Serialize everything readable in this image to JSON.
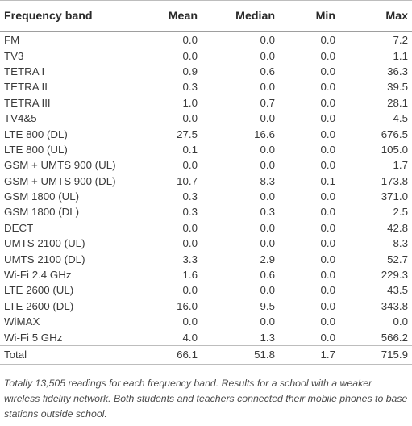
{
  "table": {
    "headers": [
      "Frequency band",
      "Mean",
      "Median",
      "Min",
      "Max"
    ],
    "rows": [
      [
        "FM",
        "0.0",
        "0.0",
        "0.0",
        "7.2"
      ],
      [
        "TV3",
        "0.0",
        "0.0",
        "0.0",
        "1.1"
      ],
      [
        "TETRA I",
        "0.9",
        "0.6",
        "0.0",
        "36.3"
      ],
      [
        "TETRA II",
        "0.3",
        "0.0",
        "0.0",
        "39.5"
      ],
      [
        "TETRA III",
        "1.0",
        "0.7",
        "0.0",
        "28.1"
      ],
      [
        "TV4&5",
        "0.0",
        "0.0",
        "0.0",
        "4.5"
      ],
      [
        "LTE 800 (DL)",
        "27.5",
        "16.6",
        "0.0",
        "676.5"
      ],
      [
        "LTE 800 (UL)",
        "0.1",
        "0.0",
        "0.0",
        "105.0"
      ],
      [
        "GSM + UMTS 900 (UL)",
        "0.0",
        "0.0",
        "0.0",
        "1.7"
      ],
      [
        "GSM + UMTS 900 (DL)",
        "10.7",
        "8.3",
        "0.1",
        "173.8"
      ],
      [
        "GSM 1800 (UL)",
        "0.3",
        "0.0",
        "0.0",
        "371.0"
      ],
      [
        "GSM 1800 (DL)",
        "0.3",
        "0.3",
        "0.0",
        "2.5"
      ],
      [
        "DECT",
        "0.0",
        "0.0",
        "0.0",
        "42.8"
      ],
      [
        "UMTS 2100 (UL)",
        "0.0",
        "0.0",
        "0.0",
        "8.3"
      ],
      [
        "UMTS 2100 (DL)",
        "3.3",
        "2.9",
        "0.0",
        "52.7"
      ],
      [
        "Wi-Fi 2.4 GHz",
        "1.6",
        "0.6",
        "0.0",
        "229.3"
      ],
      [
        "LTE 2600 (UL)",
        "0.0",
        "0.0",
        "0.0",
        "43.5"
      ],
      [
        "LTE 2600 (DL)",
        "16.0",
        "9.5",
        "0.0",
        "343.8"
      ],
      [
        "WiMAX",
        "0.0",
        "0.0",
        "0.0",
        "0.0"
      ],
      [
        "Wi-Fi 5 GHz",
        "4.0",
        "1.3",
        "0.0",
        "566.2"
      ]
    ],
    "total": [
      "Total",
      "66.1",
      "51.8",
      "1.7",
      "715.9"
    ]
  },
  "footnote": "Totally 13,505 readings for each frequency band. Results for a school with a weaker wireless fidelity network. Both students and teachers connected their mobile phones to base stations outside school."
}
